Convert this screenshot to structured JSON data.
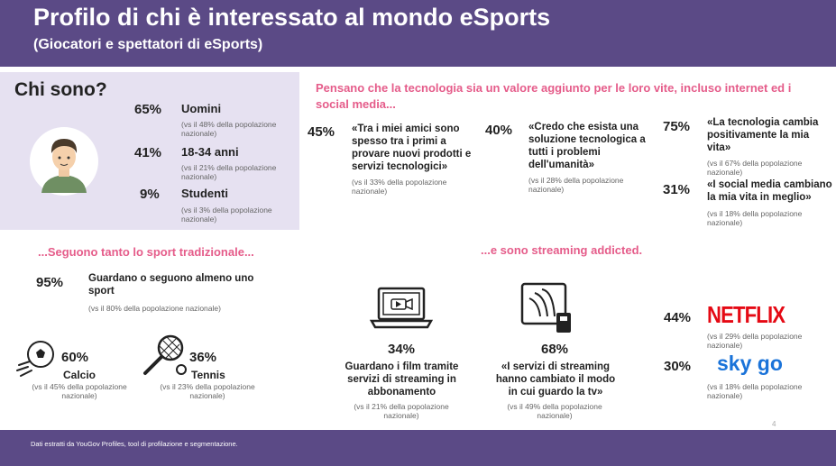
{
  "header": {
    "title": "Profilo di chi è interessato al mondo eSports",
    "subtitle": "(Giocatori e spettatori di eSports)"
  },
  "chi_sono": {
    "title": "Chi sono?",
    "items": [
      {
        "pct": "65%",
        "label": "Uomini",
        "note": "(vs il 48% della popolazione nazionale)"
      },
      {
        "pct": "41%",
        "label": "18-34 anni",
        "note": "(vs il 21% della popolazione nazionale)"
      },
      {
        "pct": "9%",
        "label": "Studenti",
        "note": "(vs il 3% della popolazione nazionale)"
      }
    ]
  },
  "tech": {
    "heading": "Pensano che la tecnologia sia un valore aggiunto per le loro vite, incluso internet ed i social media...",
    "items": [
      {
        "pct": "45%",
        "quote": "«Tra i miei amici sono spesso tra i primi a provare nuovi prodotti e servizi tecnologici»",
        "note": "(vs il 33% della popolazione nazionale)"
      },
      {
        "pct": "40%",
        "quote": "«Credo che esista una soluzione tecnologica a tutti i problemi dell'umanità»",
        "note": "(vs il 28% della popolazione nazionale)"
      },
      {
        "pct": "75%",
        "quote": "«La tecnologia cambia positivamente la mia vita»",
        "note": "(vs il 67% della popolazione nazionale)"
      },
      {
        "pct": "31%",
        "quote": "«I social media cambiano la mia vita in meglio»",
        "note": "(vs il 18% della popolazione nazionale)"
      }
    ]
  },
  "sport": {
    "heading": "...Seguono tanto lo sport tradizionale...",
    "main": {
      "pct": "95%",
      "label": "Guardano o seguono almeno uno sport",
      "note": "(vs il 80% della popolazione nazionale)"
    },
    "items": [
      {
        "pct": "60%",
        "label": "Calcio",
        "note": "(vs il 45% della popolazione nazionale)",
        "icon": "soccer-ball-icon"
      },
      {
        "pct": "36%",
        "label": "Tennis",
        "note": "(vs il 23% della popolazione nazionale)",
        "icon": "tennis-racket-icon"
      }
    ]
  },
  "streaming": {
    "heading": "...e sono streaming addicted.",
    "items": [
      {
        "pct": "34%",
        "label": "Guardano i film tramite servizi di streaming in abbonamento",
        "note": "(vs il 21% della popolazione nazionale)",
        "icon": "laptop-video-icon"
      },
      {
        "pct": "68%",
        "label": "«I servizi di streaming hanno cambiato il modo in cui guardo la tv»",
        "note": "(vs il 49% della popolazione nazionale)",
        "icon": "tv-remote-icon"
      }
    ],
    "brands": [
      {
        "pct": "44%",
        "brand": "NETFLIX",
        "note": "(vs il 29% della popolazione nazionale)"
      },
      {
        "pct": "30%",
        "brand": "sky go",
        "note": "(vs il 18% della popolazione nazionale)"
      }
    ]
  },
  "footer": {
    "text": "Dati estratti da YouGov Profiles, tool di profilazione e segmentazione.",
    "page": "4"
  },
  "colors": {
    "header_bg": "#5b4a86",
    "accent_pink": "#e55c8a",
    "panel_bg": "#e6e1f1",
    "netflix_red": "#e50914",
    "sky_blue": "#1a73d9"
  }
}
